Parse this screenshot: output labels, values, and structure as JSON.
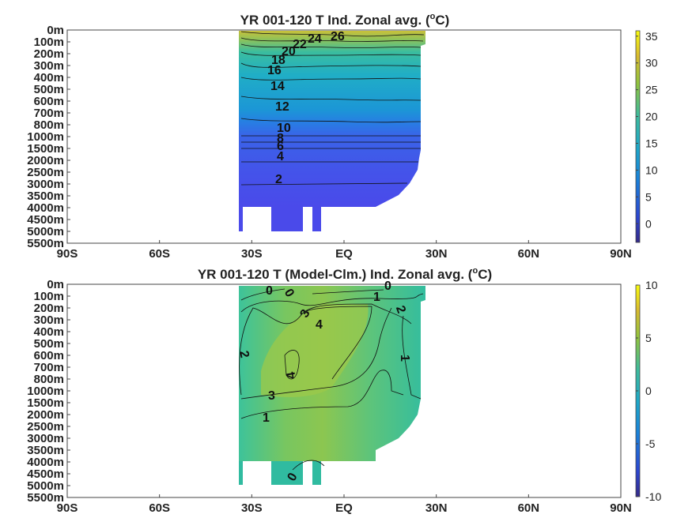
{
  "chart_data": [
    {
      "type": "heatmap",
      "title": "YR 001-120 T Ind. Zonal avg. (",
      "title_unit": "C)",
      "title_sup": "o",
      "x_ticks": [
        "90S",
        "60S",
        "30S",
        "EQ",
        "30N",
        "60N",
        "90N"
      ],
      "y_ticks": [
        "0m",
        "100m",
        "200m",
        "300m",
        "400m",
        "500m",
        "600m",
        "700m",
        "800m",
        "1000m",
        "1500m",
        "2000m",
        "2500m",
        "3000m",
        "3500m",
        "4000m",
        "4500m",
        "5000m",
        "5500m"
      ],
      "xlim": [
        -90,
        90
      ],
      "colorbar": {
        "ticks": [
          "35",
          "30",
          "25",
          "20",
          "15",
          "10",
          "5",
          "0"
        ],
        "range": [
          -3.5,
          36
        ]
      },
      "contour_labels": [
        "26",
        "24",
        "22",
        "20",
        "18",
        "16",
        "14",
        "12",
        "10",
        "8",
        "6",
        "4",
        "2"
      ],
      "grid": false
    },
    {
      "type": "heatmap",
      "title": "YR 001-120 T (Model-Clm.) Ind. Zonal avg. (",
      "title_unit": "C)",
      "title_sup": "o",
      "x_ticks": [
        "90S",
        "60S",
        "30S",
        "EQ",
        "30N",
        "60N",
        "90N"
      ],
      "y_ticks": [
        "0m",
        "100m",
        "200m",
        "300m",
        "400m",
        "500m",
        "600m",
        "700m",
        "800m",
        "1000m",
        "1500m",
        "2000m",
        "2500m",
        "3000m",
        "3500m",
        "4000m",
        "4500m",
        "5000m",
        "5500m"
      ],
      "xlim": [
        -90,
        90
      ],
      "colorbar": {
        "ticks": [
          "10",
          "5",
          "0",
          "-5",
          "-10"
        ],
        "range": [
          -10,
          10
        ]
      },
      "contour_labels": [
        "0",
        "0",
        "1",
        "2",
        "3",
        "4",
        "2",
        "1",
        "4",
        "3",
        "1",
        "0"
      ],
      "grid": false
    }
  ]
}
